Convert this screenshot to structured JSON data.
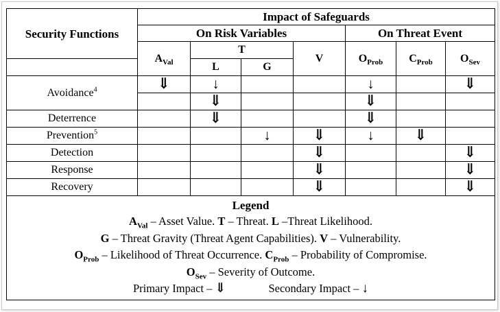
{
  "header": {
    "impact_title": "Impact of Safeguards",
    "security_functions": "Security Functions",
    "on_risk_variables": "On Risk Variables",
    "on_threat_event": "On Threat Event",
    "aval_main": "A",
    "aval_sub": "Val",
    "t": "T",
    "l": "L",
    "g": "G",
    "v": "V",
    "oprob_main": "O",
    "oprob_sub": "Prob",
    "cprob_main": "C",
    "cprob_sub": "Prob",
    "osev_main": "O",
    "osev_sub": "Sev"
  },
  "arrows": {
    "primary": "⇓",
    "secondary": "↓"
  },
  "rows": [
    {
      "label": "Avoidance",
      "footnote": "4"
    },
    {
      "label": "Deterrence",
      "footnote": ""
    },
    {
      "label": "Prevention",
      "footnote": "5"
    },
    {
      "label": "Detection",
      "footnote": ""
    },
    {
      "label": "Response",
      "footnote": ""
    },
    {
      "label": "Recovery",
      "footnote": ""
    }
  ],
  "legend": {
    "title": "Legend",
    "aval_main": "A",
    "aval_sub": "Val",
    "aval_text": " – Asset Value.  ",
    "t_sym": "T",
    "t_text": " – Threat.  ",
    "l_sym": "L",
    "l_text": " –Threat Likelihood.",
    "g_sym": "G",
    "g_text": " – Threat Gravity (Threat Agent Capabilities).  ",
    "v_sym": "V",
    "v_text": " – Vulnerability.",
    "oprob_main": "O",
    "oprob_sub": "Prob",
    "oprob_text": " – Likelihood of Threat Occurrence.  ",
    "cprob_main": "C",
    "cprob_sub": "Prob",
    "cprob_text": " – Probability of Compromise.",
    "osev_main": "O",
    "osev_sub": "Sev",
    "osev_text": " –  Severity of Outcome.",
    "primary_text": "Primary Impact – ",
    "secondary_text": "Secondary Impact – "
  }
}
